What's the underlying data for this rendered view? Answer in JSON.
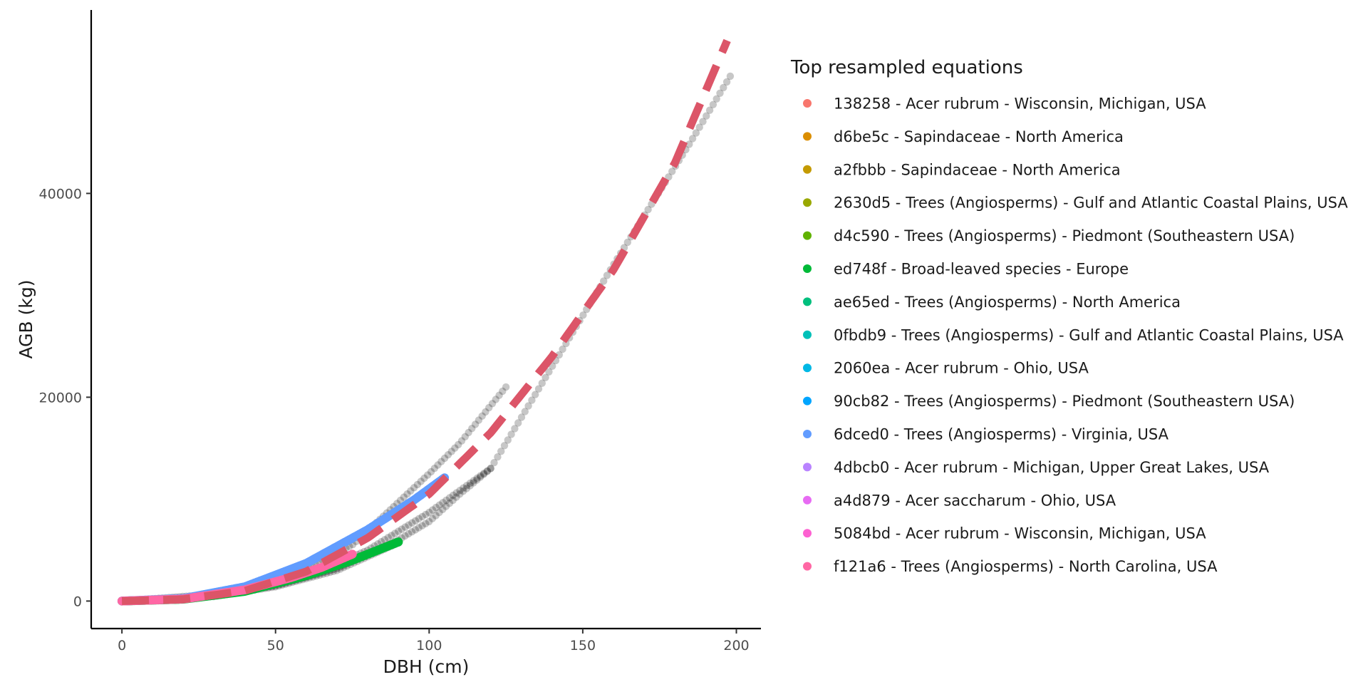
{
  "chart_data": {
    "type": "scatter",
    "xlabel": "DBH (cm)",
    "ylabel": "AGB (kg)",
    "xlim": [
      -10,
      208
    ],
    "ylim": [
      -2700,
      58000
    ],
    "x_ticks": [
      0,
      50,
      100,
      150,
      200
    ],
    "y_ticks": [
      0,
      20000,
      40000
    ],
    "grid": false,
    "legend_title": "Top resampled equations",
    "legend_position": "right",
    "series": [
      {
        "name": "138258 - Acer rubrum - Wisconsin, Michigan, USA",
        "color": "#F8766D"
      },
      {
        "name": "d6be5c - Sapindaceae - North America",
        "color": "#DB8E00"
      },
      {
        "name": "a2fbbb - Sapindaceae - North America",
        "color": "#C49A00"
      },
      {
        "name": "2630d5 - Trees (Angiosperms) - Gulf and Atlantic Coastal Plains, USA",
        "color": "#99A800"
      },
      {
        "name": "d4c590 - Trees (Angiosperms) - Piedmont (Southeastern USA)",
        "color": "#60B200"
      },
      {
        "name": "ed748f - Broad-leaved species - Europe",
        "color": "#00BA38",
        "x_range": [
          0,
          90
        ],
        "points": [
          [
            0,
            0
          ],
          [
            20,
            180
          ],
          [
            40,
            950
          ],
          [
            60,
            2500
          ],
          [
            75,
            4000
          ],
          [
            90,
            5800
          ]
        ]
      },
      {
        "name": "ae65ed - Trees (Angiosperms) - North America",
        "color": "#00BF7D"
      },
      {
        "name": "0fbdb9 - Trees (Angiosperms) - Gulf and Atlantic Coastal Plains, USA",
        "color": "#00C0B8"
      },
      {
        "name": "2060ea - Acer rubrum - Ohio, USA",
        "color": "#00B8E5"
      },
      {
        "name": "90cb82 - Trees (Angiosperms) - Piedmont (Southeastern USA)",
        "color": "#00A5FF"
      },
      {
        "name": "6dced0 - Trees (Angiosperms) - Virginia, USA",
        "color": "#619CFF",
        "x_range": [
          0,
          105
        ],
        "points": [
          [
            0,
            0
          ],
          [
            20,
            250
          ],
          [
            40,
            1400
          ],
          [
            60,
            3700
          ],
          [
            80,
            7000
          ],
          [
            95,
            9900
          ],
          [
            105,
            12100
          ]
        ]
      },
      {
        "name": "4dbcb0 - Acer rubrum - Michigan, Upper Great Lakes, USA",
        "color": "#B983FF"
      },
      {
        "name": "a4d879 - Acer saccharum - Ohio, USA",
        "color": "#E76BF3"
      },
      {
        "name": "5084bd - Acer rubrum - Wisconsin, Michigan, USA",
        "color": "#FD61D1"
      },
      {
        "name": "f121a6 - Trees (Angiosperms) - North Carolina, USA",
        "color": "#FF67A4",
        "x_range": [
          0,
          75
        ],
        "points": [
          [
            0,
            0
          ],
          [
            20,
            200
          ],
          [
            40,
            1100
          ],
          [
            55,
            2300
          ],
          [
            65,
            3300
          ],
          [
            75,
            4600
          ]
        ]
      }
    ],
    "reference_curve": {
      "style": "dashed",
      "color": "#DC5568",
      "points": [
        [
          0,
          0
        ],
        [
          20,
          180
        ],
        [
          40,
          1000
        ],
        [
          60,
          2900
        ],
        [
          80,
          6200
        ],
        [
          100,
          10500
        ],
        [
          120,
          16500
        ],
        [
          140,
          24000
        ],
        [
          160,
          32500
        ],
        [
          180,
          43000
        ],
        [
          197,
          55000
        ]
      ]
    },
    "observed_points_color": "#000000",
    "observed_groups": [
      {
        "x_range": [
          2,
          125
        ],
        "points": [
          [
            0,
            0
          ],
          [
            25,
            300
          ],
          [
            50,
            1800
          ],
          [
            75,
            5500
          ],
          [
            100,
            12500
          ],
          [
            110,
            15500
          ],
          [
            125,
            21000
          ]
        ]
      },
      {
        "x_range": [
          2,
          198
        ],
        "points": [
          [
            0,
            0
          ],
          [
            40,
            900
          ],
          [
            60,
            2400
          ],
          [
            80,
            5000
          ],
          [
            100,
            8700
          ],
          [
            120,
            13000
          ],
          [
            140,
            23000
          ],
          [
            160,
            33000
          ],
          [
            170,
            37800
          ],
          [
            185,
            45000
          ],
          [
            198,
            51500
          ]
        ]
      },
      {
        "x_range": [
          2,
          120
        ],
        "points": [
          [
            0,
            0
          ],
          [
            30,
            500
          ],
          [
            50,
            1500
          ],
          [
            70,
            3200
          ],
          [
            90,
            6000
          ],
          [
            100,
            7800
          ],
          [
            110,
            10500
          ],
          [
            120,
            13000
          ]
        ]
      },
      {
        "x_range": [
          2,
          90
        ],
        "points": [
          [
            0,
            0
          ],
          [
            30,
            450
          ],
          [
            50,
            1400
          ],
          [
            70,
            3000
          ],
          [
            90,
            5700
          ]
        ]
      }
    ]
  }
}
